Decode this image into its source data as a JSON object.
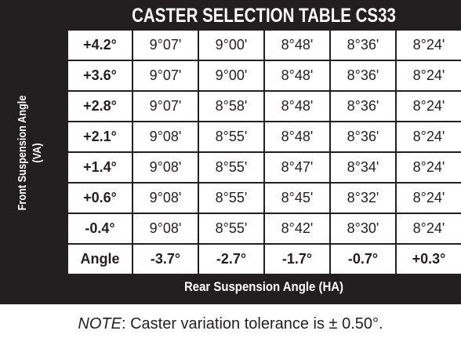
{
  "title": "CASTER SELECTION TABLE CS33",
  "side_label": {
    "line1": "Front Suspension Angle",
    "line2": "(VA)"
  },
  "bottom_label": "Rear Suspension Angle (HA)",
  "table": {
    "row_labels": [
      "+4.2°",
      "+3.6°",
      "+2.8°",
      "+2.1°",
      "+1.4°",
      "+0.6°",
      "-0.4°"
    ],
    "rows": [
      [
        "9°07'",
        "9°00'",
        "8°48'",
        "8°36'",
        "8°24'"
      ],
      [
        "9°07'",
        "9°00'",
        "8°48'",
        "8°36'",
        "8°24'"
      ],
      [
        "9°07'",
        "8°58'",
        "8°48'",
        "8°36'",
        "8°24'"
      ],
      [
        "9°08'",
        "8°55'",
        "8°48'",
        "8°36'",
        "8°24'"
      ],
      [
        "9°08'",
        "8°55'",
        "8°47'",
        "8°34'",
        "8°24'"
      ],
      [
        "9°08'",
        "8°55'",
        "8°45'",
        "8°32'",
        "8°24'"
      ],
      [
        "9°08'",
        "8°55'",
        "8°42'",
        "8°30'",
        "8°24'"
      ]
    ],
    "corner": "Angle",
    "column_labels": [
      "-3.7°",
      "-2.7°",
      "-1.7°",
      "-0.7°",
      "+0.3°"
    ]
  },
  "note": {
    "label": "NOTE",
    "text": ": Caster variation tolerance is ± 0.50°."
  }
}
